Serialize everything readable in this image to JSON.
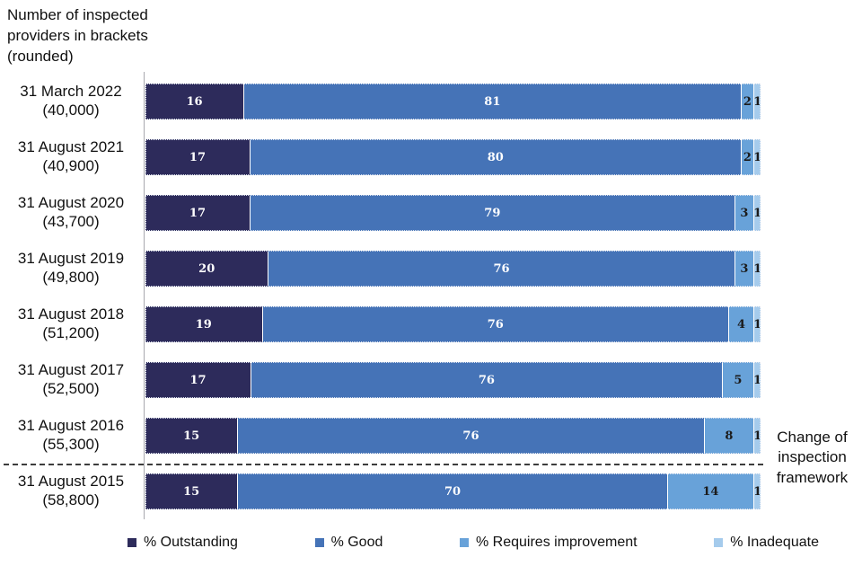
{
  "header": {
    "note_lines": [
      "Number of inspected",
      "providers in brackets",
      "(rounded)"
    ]
  },
  "rows": [
    {
      "date": "31 March 2022",
      "count": "(40,000)",
      "values": [
        16,
        81,
        2,
        1
      ]
    },
    {
      "date": "31 August 2021",
      "count": "(40,900)",
      "values": [
        17,
        80,
        2,
        1
      ]
    },
    {
      "date": "31 August 2020",
      "count": "(43,700)",
      "values": [
        17,
        79,
        3,
        1
      ]
    },
    {
      "date": "31 August 2019",
      "count": "(49,800)",
      "values": [
        20,
        76,
        3,
        1
      ]
    },
    {
      "date": "31 August 2018",
      "count": "(51,200)",
      "values": [
        19,
        76,
        4,
        1
      ]
    },
    {
      "date": "31 August 2017",
      "count": "(52,500)",
      "values": [
        17,
        76,
        5,
        1
      ]
    },
    {
      "date": "31 August 2016",
      "count": "(55,300)",
      "values": [
        15,
        76,
        8,
        1
      ]
    },
    {
      "date": "31 August 2015",
      "count": "(58,800)",
      "values": [
        15,
        70,
        14,
        1
      ]
    }
  ],
  "legend": [
    {
      "label": "% Outstanding",
      "color": "#2d2b5b"
    },
    {
      "label": "% Good",
      "color": "#4573b7"
    },
    {
      "label": "% Requires improvement",
      "color": "#68a2d9"
    },
    {
      "label": "% Inadequate",
      "color": "#a5cbec"
    }
  ],
  "annotation": {
    "lines": [
      "Change of",
      "inspection",
      "framework"
    ]
  },
  "chart_data": {
    "type": "bar",
    "orientation": "horizontal",
    "stacked": true,
    "unit": "percent",
    "title": "Number of inspected providers in brackets (rounded)",
    "categories": [
      "31 March 2022 (40,000)",
      "31 August 2021 (40,900)",
      "31 August 2020 (43,700)",
      "31 August 2019 (49,800)",
      "31 August 2018 (51,200)",
      "31 August 2017 (52,500)",
      "31 August 2016 (55,300)",
      "31 August 2015 (58,800)"
    ],
    "series": [
      {
        "name": "% Outstanding",
        "color": "#2d2b5b",
        "values": [
          16,
          17,
          17,
          20,
          19,
          17,
          15,
          15
        ]
      },
      {
        "name": "% Good",
        "color": "#4573b7",
        "values": [
          81,
          80,
          79,
          76,
          76,
          76,
          76,
          70
        ]
      },
      {
        "name": "% Requires improvement",
        "color": "#68a2d9",
        "values": [
          2,
          2,
          3,
          3,
          4,
          5,
          8,
          14
        ]
      },
      {
        "name": "% Inadequate",
        "color": "#a5cbec",
        "values": [
          1,
          1,
          1,
          1,
          1,
          1,
          1,
          1
        ]
      }
    ],
    "xlim": [
      0,
      100
    ],
    "grid": false,
    "legend_position": "bottom",
    "annotations": [
      {
        "text": "Change of inspection framework",
        "style": "horizontal-dashed-line",
        "between_categories": [
          "31 August 2016 (55,300)",
          "31 August 2015 (58,800)"
        ]
      }
    ]
  }
}
